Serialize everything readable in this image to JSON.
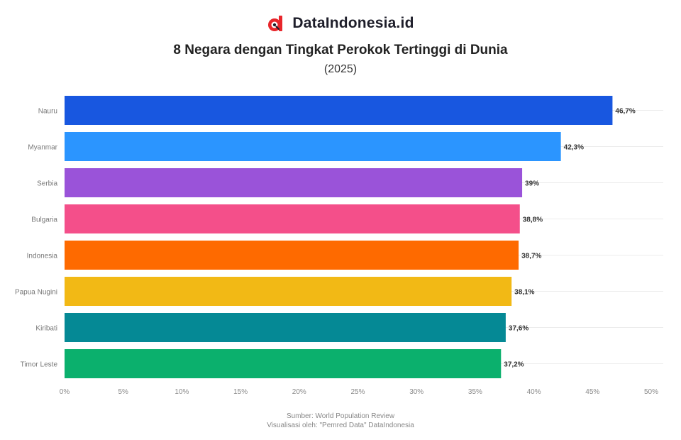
{
  "header": {
    "brand": "DataIndonesia.id",
    "brand_color": "#e8262b",
    "title": "8 Negara dengan Tingkat Perokok Tertinggi di Dunia",
    "subtitle": "(2025)"
  },
  "footer": {
    "source": "Sumber: World Population Review",
    "note": "Visualisasi oleh: \"Pemred Data\" DataIndonesia"
  },
  "chart_data": {
    "type": "bar",
    "orientation": "horizontal",
    "title": "8 Negara dengan Tingkat Perokok Tertinggi di Dunia",
    "subtitle": "(2025)",
    "categories": [
      "Nauru",
      "Myanmar",
      "Serbia",
      "Bulgaria",
      "Indonesia",
      "Papua Nugini",
      "Kiribati",
      "Timor Leste"
    ],
    "values": [
      46.7,
      42.3,
      39.0,
      38.8,
      38.7,
      38.1,
      37.6,
      37.2
    ],
    "value_labels": [
      "46,7%",
      "42,3%",
      "39%",
      "38,8%",
      "38,7%",
      "38,1%",
      "37,6%",
      "37,2%"
    ],
    "colors": [
      "#1857e0",
      "#2b95ff",
      "#9a53d9",
      "#f44f8a",
      "#fe6a00",
      "#f2b915",
      "#058995",
      "#0bb06d"
    ],
    "xlim": [
      0,
      50
    ],
    "xticks": [
      0,
      5,
      10,
      15,
      20,
      25,
      30,
      35,
      40,
      45,
      50
    ],
    "xtick_labels": [
      "0%",
      "5%",
      "10%",
      "15%",
      "20%",
      "25%",
      "30%",
      "35%",
      "40%",
      "45%",
      "50%"
    ],
    "grid": true,
    "legend": "none"
  }
}
